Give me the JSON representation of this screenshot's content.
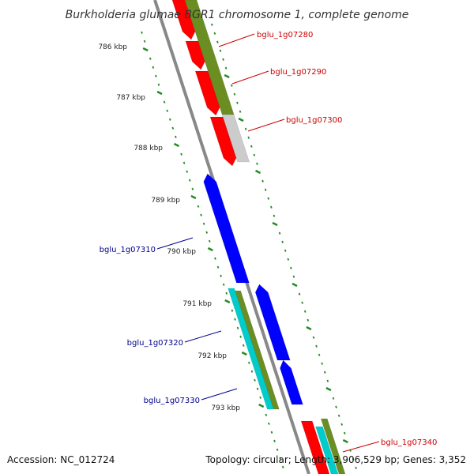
{
  "title": "Burkholderia glumae BGR1 chromosome 1, complete genome",
  "accession_text": "Accession: NC_012724",
  "summary_text": "Topology: circular; Length: 3,906,529 bp; Genes: 3,352",
  "ticks": [
    "786 kbp",
    "787 kbp",
    "788 kbp",
    "789 kbp",
    "790 kbp",
    "791 kbp",
    "792 kbp",
    "793 kbp"
  ],
  "genes": [
    {
      "label": "bglu_1g07280",
      "color": "#cc0000"
    },
    {
      "label": "bglu_1g07290",
      "color": "#cc0000"
    },
    {
      "label": "bglu_1g07300",
      "color": "#cc0000"
    },
    {
      "label": "bglu_1g07310",
      "color": "#00008b"
    },
    {
      "label": "bglu_1g07320",
      "color": "#00008b"
    },
    {
      "label": "bglu_1g07330",
      "color": "#00008b"
    },
    {
      "label": "bglu_1g07340",
      "color": "#cc0000"
    }
  ],
  "colors": {
    "forward_cds": "#ff0000",
    "reverse_cds": "#0000ff",
    "gene_track": "#6b8e23",
    "rna_track": "#00cccc",
    "pseudo_track": "#cccccc",
    "backbone": "#888888",
    "tick_marks": "#228b22"
  }
}
